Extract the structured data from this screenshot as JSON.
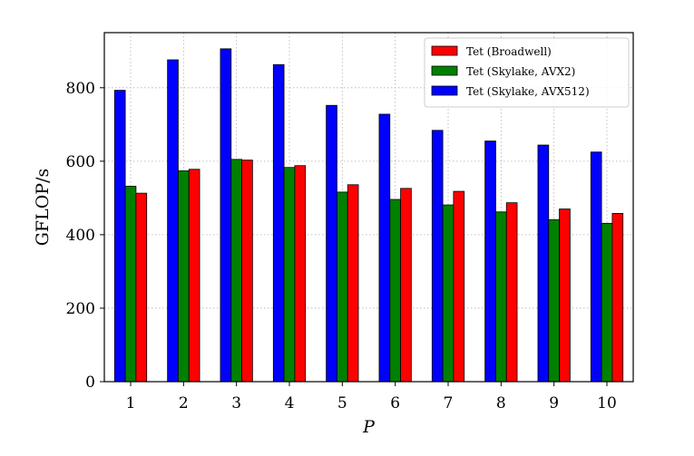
{
  "chart_data": {
    "type": "bar",
    "categories": [
      "1",
      "2",
      "3",
      "4",
      "5",
      "6",
      "7",
      "8",
      "9",
      "10"
    ],
    "series": [
      {
        "name": "Tet (Skylake, AVX512)",
        "color": "#0000ff",
        "values": [
          793,
          876,
          906,
          863,
          752,
          728,
          684,
          655,
          644,
          625
        ]
      },
      {
        "name": "Tet (Skylake, AVX2)",
        "color": "#008000",
        "values": [
          532,
          574,
          605,
          583,
          516,
          496,
          481,
          462,
          441,
          431
        ]
      },
      {
        "name": "Tet (Broadwell)",
        "color": "#ff0000",
        "values": [
          513,
          578,
          603,
          588,
          536,
          526,
          518,
          487,
          470,
          458
        ]
      }
    ],
    "legend_order": [
      "Tet (Broadwell)",
      "Tet (Skylake, AVX2)",
      "Tet (Skylake, AVX512)"
    ],
    "xlabel": "P",
    "ylabel": "GFLOP/s",
    "ylim": [
      0,
      950
    ],
    "yticks": [
      0,
      200,
      400,
      600,
      800
    ],
    "grid": true,
    "legend_position": "top-right"
  }
}
